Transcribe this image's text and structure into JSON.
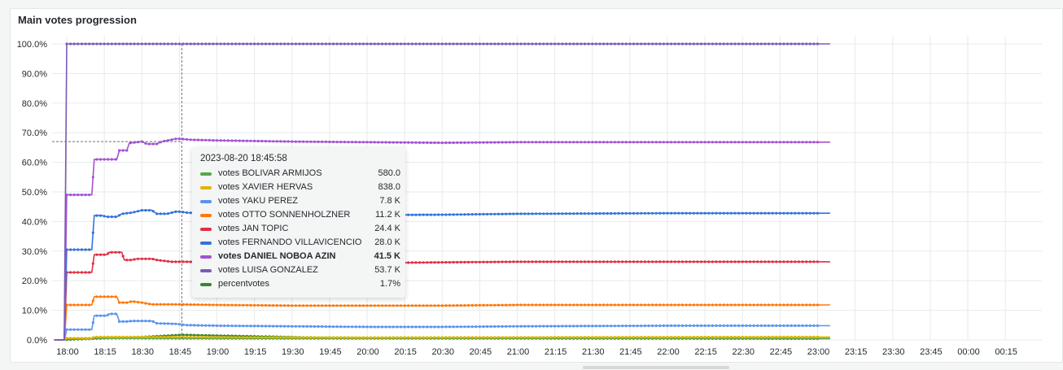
{
  "panel": {
    "title": "Main votes progression"
  },
  "chart_data": {
    "type": "line",
    "y_ticks": [
      "0.0%",
      "10.0%",
      "20.0%",
      "30.0%",
      "40.0%",
      "50.0%",
      "60.0%",
      "70.0%",
      "80.0%",
      "90.0%",
      "100.0%"
    ],
    "ylim": [
      0,
      100
    ],
    "x_ticks": [
      "18:00",
      "18:15",
      "18:30",
      "18:45",
      "19:00",
      "19:15",
      "19:30",
      "19:45",
      "20:00",
      "20:15",
      "20:30",
      "20:45",
      "21:00",
      "21:15",
      "21:30",
      "21:45",
      "22:00",
      "22:15",
      "22:30",
      "22:45",
      "23:00",
      "23:15",
      "23:30",
      "23:45",
      "00:00",
      "00:15"
    ],
    "x_unit": "minutes since 18:00",
    "xlim": [
      -5,
      305
    ],
    "grid": true,
    "hover_time_minutes": 45.97,
    "series": [
      {
        "name": "votes LUISA GONZALEZ",
        "color": "#7b5bb4",
        "points": [
          [
            -5,
            0
          ],
          [
            -1,
            0
          ],
          [
            0,
            100
          ],
          [
            305,
            100
          ]
        ]
      },
      {
        "name": "votes DANIEL NOBOA AZIN",
        "color": "#a452d4",
        "points": [
          [
            -5,
            0
          ],
          [
            -1,
            0
          ],
          [
            0,
            49
          ],
          [
            10,
            49
          ],
          [
            11,
            61
          ],
          [
            20,
            61
          ],
          [
            21,
            64
          ],
          [
            24,
            64
          ],
          [
            25,
            66.5
          ],
          [
            30,
            67
          ],
          [
            32,
            66.2
          ],
          [
            36,
            66.2
          ],
          [
            38,
            67
          ],
          [
            44,
            68
          ],
          [
            50,
            67.6
          ],
          [
            60,
            67.4
          ],
          [
            75,
            67.2
          ],
          [
            90,
            67
          ],
          [
            120,
            66.8
          ],
          [
            150,
            66.6
          ],
          [
            180,
            66.8
          ],
          [
            305,
            66.8
          ]
        ]
      },
      {
        "name": "votes FERNANDO VILLAVICENCIO",
        "color": "#3274d9",
        "points": [
          [
            -5,
            0
          ],
          [
            -1,
            0
          ],
          [
            0,
            30.5
          ],
          [
            10,
            30.5
          ],
          [
            11,
            42
          ],
          [
            14,
            42
          ],
          [
            16,
            41.6
          ],
          [
            20,
            41.6
          ],
          [
            22,
            42.6
          ],
          [
            26,
            43
          ],
          [
            30,
            43.8
          ],
          [
            34,
            43.8
          ],
          [
            36,
            42.6
          ],
          [
            40,
            42.6
          ],
          [
            44,
            43.4
          ],
          [
            48,
            43
          ],
          [
            60,
            42.6
          ],
          [
            75,
            42.4
          ],
          [
            90,
            42.2
          ],
          [
            120,
            42.2
          ],
          [
            150,
            42.3
          ],
          [
            180,
            42.6
          ],
          [
            240,
            42.8
          ],
          [
            305,
            42.8
          ]
        ]
      },
      {
        "name": "votes JAN TOPIC",
        "color": "#e02f44",
        "points": [
          [
            -5,
            0
          ],
          [
            -1,
            0
          ],
          [
            0,
            22.8
          ],
          [
            10,
            22.8
          ],
          [
            11,
            28.8
          ],
          [
            16,
            28.8
          ],
          [
            17,
            29.6
          ],
          [
            22,
            29.6
          ],
          [
            23,
            27
          ],
          [
            26,
            27
          ],
          [
            28,
            27.4
          ],
          [
            34,
            27.4
          ],
          [
            36,
            27
          ],
          [
            42,
            26.4
          ],
          [
            48,
            26.4
          ],
          [
            60,
            26.2
          ],
          [
            75,
            26.2
          ],
          [
            90,
            26
          ],
          [
            120,
            26
          ],
          [
            150,
            26.2
          ],
          [
            180,
            26.4
          ],
          [
            305,
            26.4
          ]
        ]
      },
      {
        "name": "votes OTTO SONNENHOLZNER",
        "color": "#ff780a",
        "points": [
          [
            -5,
            0
          ],
          [
            -1,
            0
          ],
          [
            0,
            11.8
          ],
          [
            10,
            11.8
          ],
          [
            11,
            14.6
          ],
          [
            20,
            14.6
          ],
          [
            21,
            12.6
          ],
          [
            24,
            12.6
          ],
          [
            26,
            13
          ],
          [
            30,
            12.6
          ],
          [
            34,
            12
          ],
          [
            44,
            12
          ],
          [
            60,
            11.8
          ],
          [
            90,
            11.6
          ],
          [
            120,
            11.6
          ],
          [
            150,
            11.6
          ],
          [
            180,
            11.8
          ],
          [
            305,
            11.8
          ]
        ]
      },
      {
        "name": "votes YAKU PEREZ",
        "color": "#5794f2",
        "points": [
          [
            -5,
            0
          ],
          [
            -1,
            0
          ],
          [
            0,
            3.5
          ],
          [
            10,
            3.5
          ],
          [
            11,
            8.2
          ],
          [
            16,
            8.2
          ],
          [
            17,
            8.8
          ],
          [
            20,
            8.8
          ],
          [
            21,
            6.2
          ],
          [
            24,
            6.2
          ],
          [
            26,
            6.4
          ],
          [
            34,
            6.4
          ],
          [
            36,
            5.6
          ],
          [
            44,
            5.4
          ],
          [
            48,
            5
          ],
          [
            60,
            4.8
          ],
          [
            90,
            4.6
          ],
          [
            120,
            4.4
          ],
          [
            150,
            4.4
          ],
          [
            180,
            4.6
          ],
          [
            240,
            4.8
          ],
          [
            305,
            4.8
          ]
        ]
      },
      {
        "name": "votes XAVIER HERVAS",
        "color": "#e0b400",
        "points": [
          [
            -5,
            0
          ],
          [
            -1,
            0
          ],
          [
            0,
            0.6
          ],
          [
            10,
            0.6
          ],
          [
            11,
            1.0
          ],
          [
            40,
            1.0
          ],
          [
            60,
            0.9
          ],
          [
            120,
            0.8
          ],
          [
            200,
            0.9
          ],
          [
            305,
            1.0
          ]
        ]
      },
      {
        "name": "votes BOLIVAR ARMIJOS",
        "color": "#56a64b",
        "points": [
          [
            -5,
            0
          ],
          [
            -1,
            0
          ],
          [
            0,
            0.4
          ],
          [
            10,
            0.4
          ],
          [
            11,
            0.6
          ],
          [
            60,
            0.5
          ],
          [
            150,
            0.5
          ],
          [
            305,
            0.5
          ]
        ]
      },
      {
        "name": "percentvotes",
        "color": "#37872d",
        "points": [
          [
            -5,
            0
          ],
          [
            -1,
            0
          ],
          [
            0,
            0.1
          ],
          [
            30,
            1
          ],
          [
            46,
            1.7
          ],
          [
            100,
            0.8
          ],
          [
            200,
            0.5
          ],
          [
            305,
            0.4
          ]
        ]
      }
    ]
  },
  "tooltip": {
    "time": "2023-08-20 18:45:58",
    "rows": [
      {
        "label": "votes BOLIVAR ARMIJOS",
        "value": "580.0",
        "color": "#56a64b"
      },
      {
        "label": "votes XAVIER HERVAS",
        "value": "838.0",
        "color": "#e0b400"
      },
      {
        "label": "votes YAKU PEREZ",
        "value": "7.8 K",
        "color": "#5794f2"
      },
      {
        "label": "votes OTTO SONNENHOLZNER",
        "value": "11.2 K",
        "color": "#ff780a"
      },
      {
        "label": "votes JAN TOPIC",
        "value": "24.4 K",
        "color": "#e02f44"
      },
      {
        "label": "votes FERNANDO VILLAVICENCIO",
        "value": "28.0 K",
        "color": "#3274d9"
      },
      {
        "label": "votes DANIEL NOBOA AZIN",
        "value": "41.5 K",
        "color": "#a452d4",
        "highlight": true
      },
      {
        "label": "votes LUISA GONZALEZ",
        "value": "53.7 K",
        "color": "#7b5bb4"
      },
      {
        "label": "percentvotes",
        "value": "1.7%",
        "color": "#37872d"
      }
    ]
  }
}
